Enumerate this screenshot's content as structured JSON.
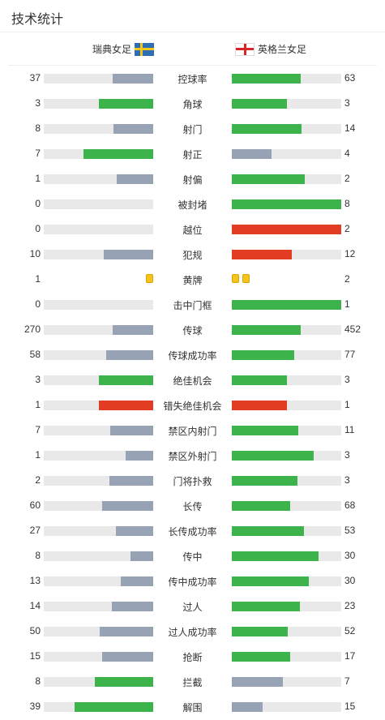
{
  "header": {
    "title": "技术统计"
  },
  "teams": {
    "home": {
      "name": "瑞典女足",
      "flag": "sweden-flag-icon"
    },
    "away": {
      "name": "英格兰女足",
      "flag": "england-flag-icon"
    }
  },
  "colors": {
    "win": "#3cb44b",
    "lose": "#97a2b4",
    "bad": "#e23c23",
    "track": "#e9e9e9",
    "yellow_card": "#f6c21c"
  },
  "stats": [
    {
      "label": "控球率",
      "home": "37",
      "away": "63",
      "home_fill": 0.37,
      "away_fill": 0.63,
      "home_color": "lose",
      "away_color": "win"
    },
    {
      "label": "角球",
      "home": "3",
      "away": "3",
      "home_fill": 0.5,
      "away_fill": 0.5,
      "home_color": "win",
      "away_color": "win"
    },
    {
      "label": "射门",
      "home": "8",
      "away": "14",
      "home_fill": 0.36,
      "away_fill": 0.64,
      "home_color": "lose",
      "away_color": "win"
    },
    {
      "label": "射正",
      "home": "7",
      "away": "4",
      "home_fill": 0.64,
      "away_fill": 0.36,
      "home_color": "win",
      "away_color": "lose"
    },
    {
      "label": "射偏",
      "home": "1",
      "away": "2",
      "home_fill": 0.33,
      "away_fill": 0.67,
      "home_color": "lose",
      "away_color": "win"
    },
    {
      "label": "被封堵",
      "home": "0",
      "away": "8",
      "home_fill": 0,
      "away_fill": 1,
      "home_color": "lose",
      "away_color": "win"
    },
    {
      "label": "越位",
      "home": "0",
      "away": "2",
      "home_fill": 0,
      "away_fill": 1,
      "home_color": "lose",
      "away_color": "bad"
    },
    {
      "label": "犯规",
      "home": "10",
      "away": "12",
      "home_fill": 0.45,
      "away_fill": 0.55,
      "home_color": "lose",
      "away_color": "bad"
    },
    {
      "label": "黄牌",
      "home": "1",
      "away": "2",
      "cards": true
    },
    {
      "label": "击中门框",
      "home": "0",
      "away": "1",
      "home_fill": 0,
      "away_fill": 1,
      "home_color": "lose",
      "away_color": "win"
    },
    {
      "label": "传球",
      "home": "270",
      "away": "452",
      "home_fill": 0.37,
      "away_fill": 0.63,
      "home_color": "lose",
      "away_color": "win"
    },
    {
      "label": "传球成功率",
      "home": "58",
      "away": "77",
      "home_fill": 0.43,
      "away_fill": 0.57,
      "home_color": "lose",
      "away_color": "win"
    },
    {
      "label": "绝佳机会",
      "home": "3",
      "away": "3",
      "home_fill": 0.5,
      "away_fill": 0.5,
      "home_color": "win",
      "away_color": "win"
    },
    {
      "label": "错失绝佳机会",
      "home": "1",
      "away": "1",
      "home_fill": 0.5,
      "away_fill": 0.5,
      "home_color": "bad",
      "away_color": "bad"
    },
    {
      "label": "禁区内射门",
      "home": "7",
      "away": "11",
      "home_fill": 0.39,
      "away_fill": 0.61,
      "home_color": "lose",
      "away_color": "win"
    },
    {
      "label": "禁区外射门",
      "home": "1",
      "away": "3",
      "home_fill": 0.25,
      "away_fill": 0.75,
      "home_color": "lose",
      "away_color": "win"
    },
    {
      "label": "门将扑救",
      "home": "2",
      "away": "3",
      "home_fill": 0.4,
      "away_fill": 0.6,
      "home_color": "lose",
      "away_color": "win"
    },
    {
      "label": "长传",
      "home": "60",
      "away": "68",
      "home_fill": 0.47,
      "away_fill": 0.53,
      "home_color": "lose",
      "away_color": "win"
    },
    {
      "label": "长传成功率",
      "home": "27",
      "away": "53",
      "home_fill": 0.34,
      "away_fill": 0.66,
      "home_color": "lose",
      "away_color": "win"
    },
    {
      "label": "传中",
      "home": "8",
      "away": "30",
      "home_fill": 0.21,
      "away_fill": 0.79,
      "home_color": "lose",
      "away_color": "win"
    },
    {
      "label": "传中成功率",
      "home": "13",
      "away": "30",
      "home_fill": 0.3,
      "away_fill": 0.7,
      "home_color": "lose",
      "away_color": "win"
    },
    {
      "label": "过人",
      "home": "14",
      "away": "23",
      "home_fill": 0.38,
      "away_fill": 0.62,
      "home_color": "lose",
      "away_color": "win"
    },
    {
      "label": "过人成功率",
      "home": "50",
      "away": "52",
      "home_fill": 0.49,
      "away_fill": 0.51,
      "home_color": "lose",
      "away_color": "win"
    },
    {
      "label": "抢断",
      "home": "15",
      "away": "17",
      "home_fill": 0.47,
      "away_fill": 0.53,
      "home_color": "lose",
      "away_color": "win"
    },
    {
      "label": "拦截",
      "home": "8",
      "away": "7",
      "home_fill": 0.53,
      "away_fill": 0.47,
      "home_color": "win",
      "away_color": "lose"
    },
    {
      "label": "解围",
      "home": "39",
      "away": "15",
      "home_fill": 0.72,
      "away_fill": 0.28,
      "home_color": "win",
      "away_color": "lose"
    }
  ]
}
